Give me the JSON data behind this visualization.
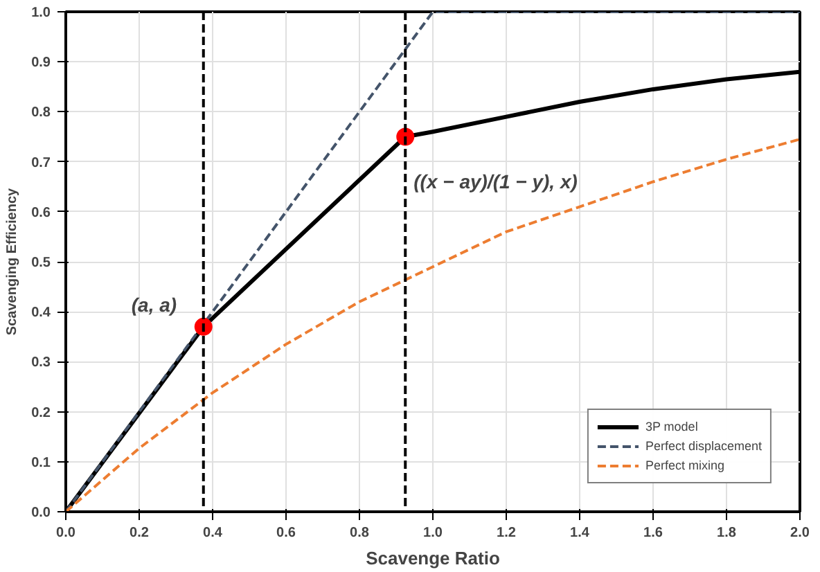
{
  "chart_data": {
    "type": "line",
    "xlabel": "Scavenge Ratio",
    "ylabel": "Scavenging Efficiency",
    "xlim": [
      0,
      2.0
    ],
    "ylim": [
      0,
      1.0
    ],
    "xticks": [
      {
        "value": 0,
        "label": "0.0"
      },
      0.2,
      0.4,
      0.6,
      0.8,
      {
        "value": 1.0,
        "label": "1.0"
      },
      1.2,
      1.4,
      1.6,
      1.8,
      {
        "value": 2.0,
        "label": "2.0"
      }
    ],
    "yticks": [
      {
        "value": 0,
        "label": "0.0"
      },
      0.1,
      0.2,
      0.3,
      0.4,
      0.5,
      0.6,
      0.7,
      0.8,
      0.9,
      {
        "value": 1.0,
        "label": "1.0"
      }
    ],
    "grid": true,
    "legend": "bottom right",
    "series": [
      {
        "name": "3P model",
        "color": "#000000",
        "line_style": "solid",
        "x": [
          0,
          0.375,
          0.925,
          1.0,
          1.2,
          1.4,
          1.6,
          1.8,
          2.0
        ],
        "values": [
          0,
          0.37,
          0.75,
          0.76,
          0.79,
          0.82,
          0.845,
          0.865,
          0.88
        ]
      },
      {
        "name": "Perfect displacement",
        "color": "#44546a",
        "line_style": "dashed",
        "x": [
          0,
          1.0,
          2.0
        ],
        "values": [
          0,
          1.0,
          1.0
        ]
      },
      {
        "name": "Perfect mixing",
        "color": "#ed7d31",
        "line_style": "dashed",
        "x": [
          0,
          0.2,
          0.4,
          0.6,
          0.8,
          1.0,
          1.2,
          1.4,
          1.6,
          1.8,
          2.0
        ],
        "values": [
          0,
          0.127,
          0.238,
          0.335,
          0.42,
          0.49,
          0.56,
          0.61,
          0.66,
          0.705,
          0.745
        ]
      },
      {
        "type": "scatter",
        "marker": "circle",
        "color": "#ff0000",
        "x": [
          0.375,
          0.925
        ],
        "values": [
          0.37,
          0.75
        ]
      }
    ],
    "ref_lines": [
      {
        "axis": "x",
        "value": 0.375,
        "color": "#000000",
        "line_style": "dashed"
      },
      {
        "axis": "x",
        "value": 0.925,
        "color": "#000000",
        "line_style": "dashed"
      }
    ],
    "annotations": [
      {
        "text": "(a, a)",
        "x": 0.375,
        "y": 0.37
      },
      {
        "text": "((x − ay)/(1 − y), x)",
        "x": 0.925,
        "y": 0.75
      }
    ]
  }
}
